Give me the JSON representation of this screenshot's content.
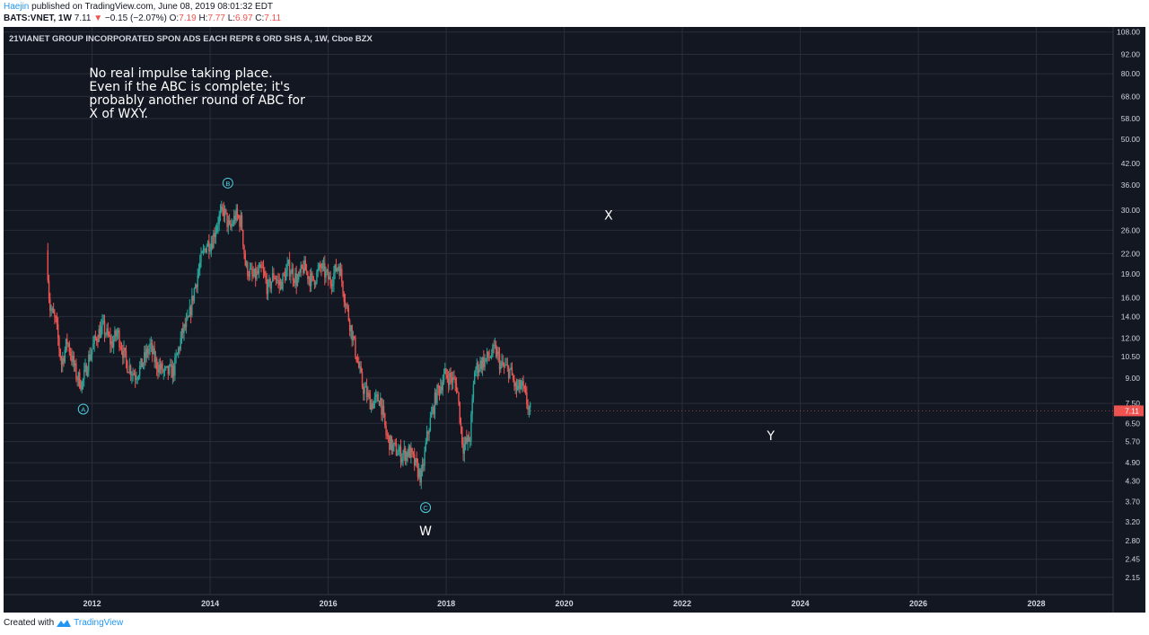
{
  "header": {
    "author": "Haejin",
    "published_text": "published on TradingView.com, June 08, 2019 08:01:32 EDT",
    "symbol": "BATS:VNET, 1W",
    "last": "7.11",
    "change": "−0.15 (−2.07%)",
    "o_label": "O:",
    "o_val": "7.19",
    "h_label": "H:",
    "h_val": "7.77",
    "l_label": "L:",
    "l_val": "6.97",
    "c_label": "C:",
    "c_val": "7.11"
  },
  "footer": {
    "created_with": "Created with",
    "brand": "TradingView"
  },
  "chart_data": {
    "type": "candlestick",
    "title": "21VIANET GROUP INCORPORATED SPON ADS EACH REPR 6 ORD SHS A, 1W, Cboe BZX",
    "y_scale": "log",
    "ylim": [
      1.9,
      112
    ],
    "xlim": [
      2010.5,
      2029.3
    ],
    "y_ticks": [
      "108.00",
      "92.00",
      "80.00",
      "68.00",
      "58.00",
      "50.00",
      "42.00",
      "36.00",
      "30.00",
      "26.00",
      "22.00",
      "19.00",
      "16.00",
      "14.00",
      "12.00",
      "10.50",
      "9.00",
      "7.50",
      "6.50",
      "5.70",
      "4.90",
      "4.30",
      "3.70",
      "3.20",
      "2.80",
      "2.45",
      "2.15"
    ],
    "x_ticks": [
      "2012",
      "2014",
      "2016",
      "2018",
      "2020",
      "2022",
      "2024",
      "2026",
      "2028"
    ],
    "last_price_label": "7.11",
    "colors": {
      "up": "#26a69a",
      "down": "#ef5350",
      "bg": "#131722",
      "grid": "#2a2e39",
      "text": "#d1d4dc",
      "label": "#4dd0e1"
    },
    "price_path": [
      [
        2011.25,
        22.5
      ],
      [
        2011.3,
        15.0
      ],
      [
        2011.4,
        13.5
      ],
      [
        2011.5,
        10.0
      ],
      [
        2011.6,
        11.8
      ],
      [
        2011.75,
        9.2
      ],
      [
        2011.85,
        8.6
      ],
      [
        2011.95,
        10.2
      ],
      [
        2012.1,
        12.2
      ],
      [
        2012.2,
        13.0
      ],
      [
        2012.35,
        11.5
      ],
      [
        2012.45,
        12.5
      ],
      [
        2012.6,
        10.0
      ],
      [
        2012.75,
        9.2
      ],
      [
        2012.85,
        9.8
      ],
      [
        2013.0,
        11.3
      ],
      [
        2013.1,
        10.0
      ],
      [
        2013.25,
        9.3
      ],
      [
        2013.4,
        9.5
      ],
      [
        2013.55,
        12.5
      ],
      [
        2013.65,
        13.5
      ],
      [
        2013.75,
        17.0
      ],
      [
        2013.85,
        20.5
      ],
      [
        2013.95,
        23.5
      ],
      [
        2014.05,
        24.0
      ],
      [
        2014.15,
        28.0
      ],
      [
        2014.25,
        30.0
      ],
      [
        2014.35,
        26.0
      ],
      [
        2014.45,
        29.0
      ],
      [
        2014.55,
        27.5
      ],
      [
        2014.62,
        20.0
      ],
      [
        2014.75,
        18.5
      ],
      [
        2014.9,
        19.5
      ],
      [
        2015.0,
        17.0
      ],
      [
        2015.1,
        19.0
      ],
      [
        2015.2,
        17.5
      ],
      [
        2015.35,
        20.0
      ],
      [
        2015.5,
        18.0
      ],
      [
        2015.6,
        20.0
      ],
      [
        2015.75,
        18.0
      ],
      [
        2015.9,
        20.0
      ],
      [
        2016.05,
        18.0
      ],
      [
        2016.2,
        20.5
      ],
      [
        2016.3,
        16.0
      ],
      [
        2016.4,
        13.0
      ],
      [
        2016.5,
        10.5
      ],
      [
        2016.6,
        8.5
      ],
      [
        2016.75,
        7.5
      ],
      [
        2016.9,
        7.8
      ],
      [
        2017.0,
        6.0
      ],
      [
        2017.1,
        5.5
      ],
      [
        2017.25,
        5.2
      ],
      [
        2017.4,
        5.3
      ],
      [
        2017.52,
        4.7
      ],
      [
        2017.6,
        4.4
      ],
      [
        2017.7,
        6.0
      ],
      [
        2017.85,
        8.0
      ],
      [
        2018.0,
        9.2
      ],
      [
        2018.1,
        9.0
      ],
      [
        2018.2,
        8.5
      ],
      [
        2018.3,
        5.5
      ],
      [
        2018.42,
        5.8
      ],
      [
        2018.5,
        9.5
      ],
      [
        2018.6,
        10.0
      ],
      [
        2018.75,
        10.5
      ],
      [
        2018.85,
        11.0
      ],
      [
        2018.95,
        9.8
      ],
      [
        2019.1,
        9.5
      ],
      [
        2019.2,
        8.3
      ],
      [
        2019.3,
        8.5
      ],
      [
        2019.43,
        7.11
      ]
    ],
    "wave_labels": [
      {
        "text": "A",
        "x": 2011.85,
        "y": 7.2,
        "style": "circle"
      },
      {
        "text": "B",
        "x": 2014.3,
        "y": 36.5,
        "style": "circle"
      },
      {
        "text": "C",
        "x": 2017.65,
        "y": 3.55,
        "style": "circle"
      },
      {
        "text": "W",
        "x": 2017.65,
        "y": 3.0,
        "style": "plain"
      },
      {
        "text": "X",
        "x": 2020.75,
        "y": 29.0,
        "style": "plain"
      },
      {
        "text": "Y",
        "x": 2023.5,
        "y": 5.95,
        "style": "plain"
      }
    ],
    "annotation": [
      "No real impulse taking place.",
      "Even if the ABC is complete; it's",
      "probably another round of ABC for",
      "X of WXY."
    ],
    "annotation_anchor": {
      "x": 2011.95,
      "y": 78
    }
  }
}
